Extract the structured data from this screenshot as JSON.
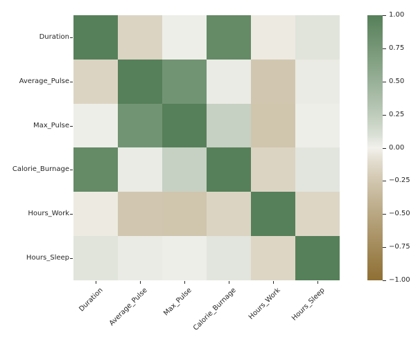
{
  "chart_data": {
    "type": "heatmap",
    "title": "",
    "xlabel": "",
    "ylabel": "",
    "categories": [
      "Duration",
      "Average_Pulse",
      "Max_Pulse",
      "Calorie_Burnage",
      "Hours_Work",
      "Hours_Sleep"
    ],
    "matrix": [
      [
        1.0,
        -0.155408,
        0.009403,
        0.889807,
        -0.026898,
        0.067534
      ],
      [
        -0.155408,
        1.0,
        0.786535,
        0.02512,
        -0.24887,
        0.025775
      ],
      [
        0.009403,
        0.786535,
        1.0,
        0.203813,
        -0.261326,
        0.012364
      ],
      [
        0.889807,
        0.02512,
        0.203813,
        1.0,
        -0.157547,
        0.057772
      ],
      [
        -0.026898,
        -0.24887,
        -0.261326,
        -0.157547,
        1.0,
        -0.143333
      ],
      [
        0.067534,
        0.025775,
        0.012364,
        0.057772,
        -0.143333,
        1.0
      ]
    ],
    "vmin": -1,
    "vmax": 1,
    "legend_position": "right-colorbar",
    "grid": false,
    "colorbar_ticks": [
      {
        "label": "1.00",
        "value": 1.0
      },
      {
        "label": "0.75",
        "value": 0.75
      },
      {
        "label": "0.50",
        "value": 0.5
      },
      {
        "label": "0.25",
        "value": 0.25
      },
      {
        "label": "0.00",
        "value": 0.0
      },
      {
        "label": "−0.25",
        "value": -0.25
      },
      {
        "label": "−0.50",
        "value": -0.5
      },
      {
        "label": "−0.75",
        "value": -0.75
      },
      {
        "label": "−1.00",
        "value": -1.0
      }
    ],
    "colormap": {
      "negative_end": "#8f7034",
      "center": "#f2f1ec",
      "positive_end": "#568059"
    }
  }
}
